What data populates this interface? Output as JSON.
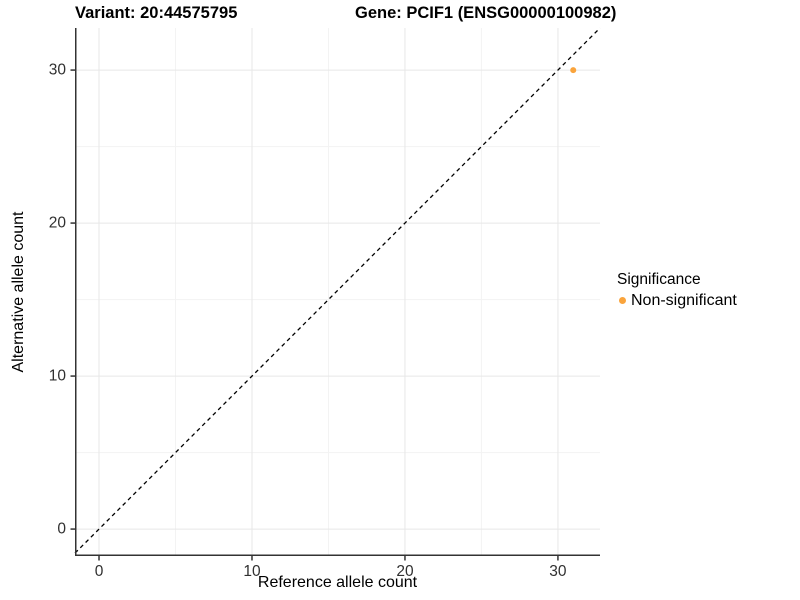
{
  "header": {
    "variant_title": "Variant: 20:44575795",
    "gene_title": "Gene: PCIF1 (ENSG00000100982)"
  },
  "chart_data": {
    "type": "scatter",
    "xlabel": "Reference allele count",
    "ylabel": "Alternative allele count",
    "xlim": [
      -1.57,
      32.75
    ],
    "ylim": [
      -1.76,
      32.75
    ],
    "x_ticks": [
      0,
      10,
      20,
      30
    ],
    "y_ticks": [
      0,
      10,
      20,
      30
    ],
    "x_minor_ticks": [
      5,
      15,
      25
    ],
    "y_minor_ticks": [
      5,
      15,
      25
    ],
    "grid": "major and minor gridlines, white panel background",
    "identity_line": {
      "slope": 1,
      "intercept": 0,
      "style": "dashed",
      "color": "#000000"
    },
    "series": [
      {
        "name": "Non-significant",
        "color": "#FAA43C",
        "points": [
          {
            "x": 31,
            "y": 30
          }
        ]
      }
    ],
    "legend": {
      "title": "Significance",
      "position": "right",
      "entries": [
        {
          "label": "Non-significant",
          "color": "#FAA43C"
        }
      ]
    },
    "style": {
      "axis_line_color": "#333333",
      "tick_label_color": "#303030",
      "grid_major_color": "#e7e7e7",
      "grid_minor_color": "#f3f3f3",
      "point_radius": 3
    }
  }
}
